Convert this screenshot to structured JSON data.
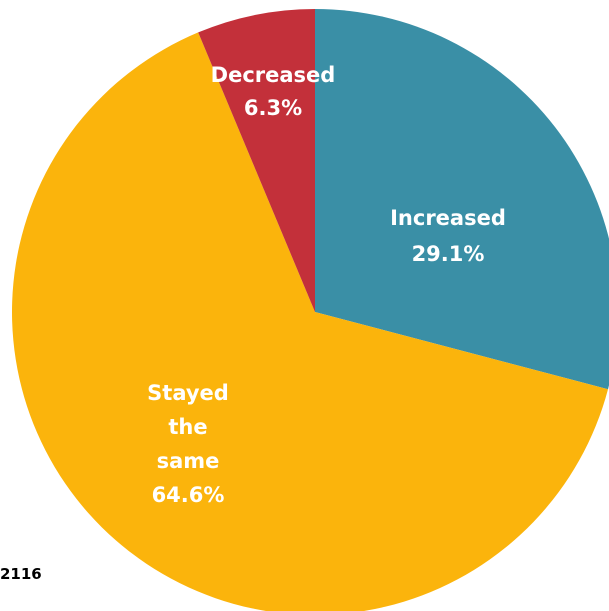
{
  "chart_data": {
    "type": "pie",
    "slices": [
      {
        "label": "Increased",
        "value": 29.1,
        "value_label": "29.1%",
        "color": "#3a8fa6"
      },
      {
        "label": "Stayed the same",
        "value": 64.6,
        "value_label": "64.6%",
        "color": "#fbb40c"
      },
      {
        "label": "Decreased",
        "value": 6.3,
        "value_label": "6.3%",
        "color": "#c3303a"
      }
    ],
    "start_angle_deg": 0,
    "direction": "clockwise"
  },
  "footnote": "2116"
}
